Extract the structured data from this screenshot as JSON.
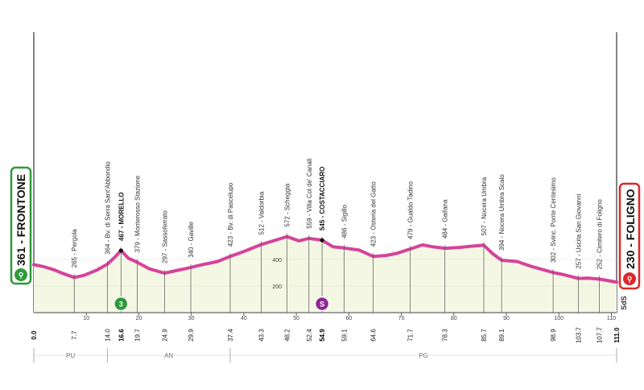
{
  "chart_data": {
    "type": "area",
    "title": "",
    "x_unit": "km",
    "y_unit": "m",
    "xlim": [
      0,
      111
    ],
    "ylim": [
      0,
      1000
    ],
    "colors": {
      "profile_line": "#d6439a",
      "profile_fill": "#f3f7e3",
      "start_box": "#2e9a3a",
      "finish_box": "#d8282b"
    },
    "start": {
      "label": "361 - FRONTONE",
      "km": 0,
      "alt": 361
    },
    "finish": {
      "label": "230 - FOLIGNO",
      "km": 111,
      "alt": 230
    },
    "profile": [
      [
        0,
        361
      ],
      [
        2,
        345
      ],
      [
        4,
        320
      ],
      [
        5.5,
        295
      ],
      [
        7.7,
        265
      ],
      [
        9.5,
        280
      ],
      [
        12,
        320
      ],
      [
        14,
        364
      ],
      [
        15.5,
        420
      ],
      [
        16.6,
        467
      ],
      [
        18,
        410
      ],
      [
        19.7,
        379
      ],
      [
        22,
        330
      ],
      [
        24.9,
        297
      ],
      [
        27,
        315
      ],
      [
        29.9,
        340
      ],
      [
        32,
        360
      ],
      [
        35,
        385
      ],
      [
        37.4,
        423
      ],
      [
        40,
        460
      ],
      [
        43.3,
        512
      ],
      [
        46,
        545
      ],
      [
        48.2,
        572
      ],
      [
        50.5,
        540
      ],
      [
        52.4,
        559
      ],
      [
        54.9,
        545
      ],
      [
        57,
        495
      ],
      [
        59.1,
        486
      ],
      [
        62,
        470
      ],
      [
        64.6,
        423
      ],
      [
        67,
        430
      ],
      [
        69,
        445
      ],
      [
        71.7,
        479
      ],
      [
        74,
        510
      ],
      [
        76,
        495
      ],
      [
        78.3,
        484
      ],
      [
        81,
        490
      ],
      [
        83,
        498
      ],
      [
        85.7,
        507
      ],
      [
        87.5,
        440
      ],
      [
        89.1,
        394
      ],
      [
        92,
        385
      ],
      [
        95,
        345
      ],
      [
        98.9,
        302
      ],
      [
        101,
        285
      ],
      [
        103.7,
        257
      ],
      [
        105.5,
        260
      ],
      [
        107.7,
        252
      ],
      [
        109.5,
        240
      ],
      [
        111,
        230
      ]
    ],
    "waypoints": [
      {
        "km": 7.7,
        "label": "265 - Pergola",
        "km_label": "7.7",
        "bold": false
      },
      {
        "km": 14.0,
        "label": "364 - Bv. di Serra Sant'Abbondio",
        "km_label": "14.0",
        "bold": false
      },
      {
        "km": 16.6,
        "label": "467 - MORELLO",
        "km_label": "16.6",
        "bold": true
      },
      {
        "km": 19.7,
        "label": "379 - Monterosso Stazione",
        "km_label": "19.7",
        "bold": false
      },
      {
        "km": 24.9,
        "label": "297 - Sassoferrato",
        "km_label": "24.9",
        "bold": false
      },
      {
        "km": 29.9,
        "label": "340 - Gaville",
        "km_label": "29.9",
        "bold": false
      },
      {
        "km": 37.4,
        "label": "423 - Bv. di Pascelupo",
        "km_label": "37.4",
        "bold": false
      },
      {
        "km": 43.3,
        "label": "512 - Valdorbia",
        "km_label": "43.3",
        "bold": false
      },
      {
        "km": 48.2,
        "label": "572 - Scheggia",
        "km_label": "48.2",
        "bold": false
      },
      {
        "km": 52.4,
        "label": "559 - Villa Col de' Canali",
        "km_label": "52.4",
        "bold": false
      },
      {
        "km": 54.9,
        "label": "545 - COSTACCIARO",
        "km_label": "54.9",
        "bold": true
      },
      {
        "km": 59.1,
        "label": "486 - Sigillo",
        "km_label": "59.1",
        "bold": false
      },
      {
        "km": 64.6,
        "label": "423 - Osteria del Gatto",
        "km_label": "64.6",
        "bold": false
      },
      {
        "km": 71.7,
        "label": "479 - Gualdo Tadino",
        "km_label": "71.7",
        "bold": false
      },
      {
        "km": 78.3,
        "label": "484 - Gaifana",
        "km_label": "78.3",
        "bold": false
      },
      {
        "km": 85.7,
        "label": "507 - Nocera Umbra",
        "km_label": "85.7",
        "bold": false
      },
      {
        "km": 89.1,
        "label": "394 - Nocera Umbra Scalo",
        "km_label": "89.1",
        "bold": false
      },
      {
        "km": 98.9,
        "label": "302 - Svinc. Ponte Centesimo",
        "km_label": "98.9",
        "bold": false
      },
      {
        "km": 103.7,
        "label": "257 - Uscita San Giovanni",
        "km_label": "103.7",
        "bold": false
      },
      {
        "km": 107.7,
        "label": "252 - Cimitero di Foligno",
        "km_label": "107.7",
        "bold": false
      }
    ],
    "x_ticks": [
      "10",
      "20",
      "30",
      "40",
      "50",
      "60",
      "70",
      "80",
      "90",
      "100",
      "110"
    ],
    "x_tick_values": [
      10,
      20,
      30,
      40,
      50,
      60,
      70,
      80,
      90,
      100,
      110
    ],
    "y_ticks": [
      {
        "value": 200,
        "label": "200"
      },
      {
        "value": 400,
        "label": "400"
      }
    ],
    "start_km_label": "0.0",
    "finish_km_label": "111.0",
    "markers": [
      {
        "km": 16.6,
        "label": "3",
        "color": "#2e9a3a",
        "kind": "climb"
      },
      {
        "km": 54.9,
        "label": "S",
        "color": "#8e2a8e",
        "kind": "sprint"
      }
    ],
    "regions": [
      {
        "label": "PU",
        "from": 0,
        "to": 14.0
      },
      {
        "label": "AN",
        "from": 14.0,
        "to": 37.4
      },
      {
        "label": "PG",
        "from": 37.4,
        "to": 111
      }
    ],
    "sds_label": "SdS"
  }
}
